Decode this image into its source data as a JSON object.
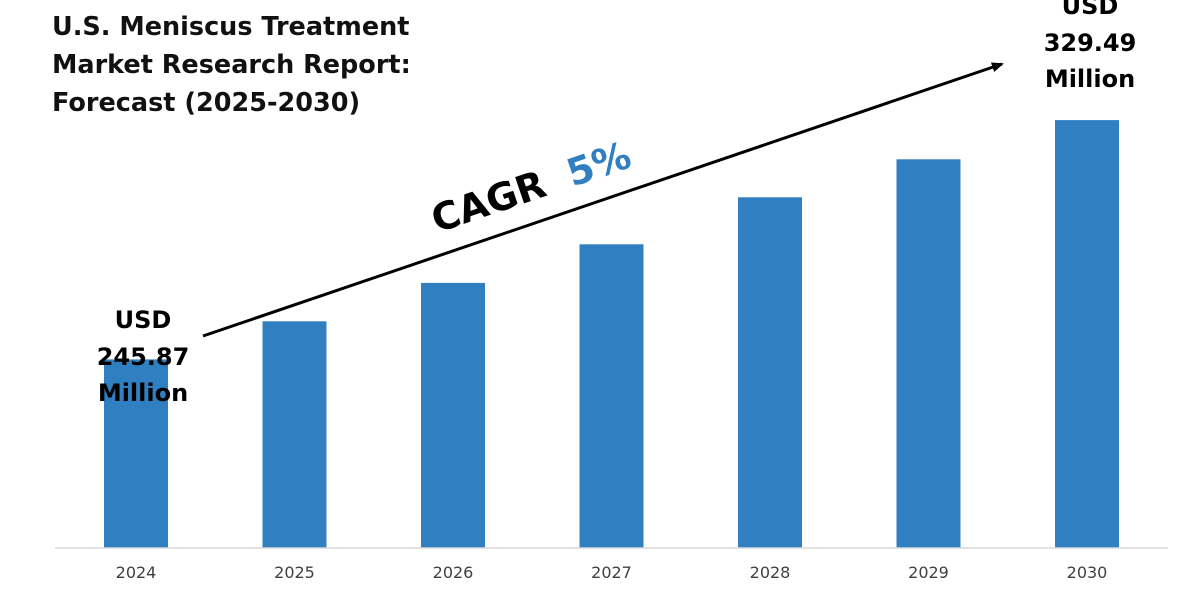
{
  "title_lines": [
    "U.S. Meniscus Treatment",
    "Market Research Report:",
    "Forecast (2025-2030)"
  ],
  "cagr": {
    "prefix": "CAGR",
    "value": "5%"
  },
  "start_label": {
    "line1": "USD",
    "line2": "245.87",
    "line3": "Million"
  },
  "end_label": {
    "line1": "USD",
    "line2": "329.49",
    "line3": "Million"
  },
  "colors": {
    "bar": "#2f7fc1",
    "accent": "#2f7fc1",
    "text": "#000000",
    "axis": "#d9d9d9"
  },
  "chart_data": {
    "type": "bar",
    "title": "U.S. Meniscus Treatment Market Research Report: Forecast (2025-2030)",
    "categories": [
      "2024",
      "2025",
      "2026",
      "2027",
      "2028",
      "2029",
      "2030"
    ],
    "values": [
      245.87,
      259.2,
      272.6,
      286.1,
      302.5,
      315.8,
      329.49
    ],
    "unit": "USD Million",
    "ylim": [
      180,
      340
    ],
    "grid": false,
    "xlabel": "",
    "ylabel": ""
  }
}
